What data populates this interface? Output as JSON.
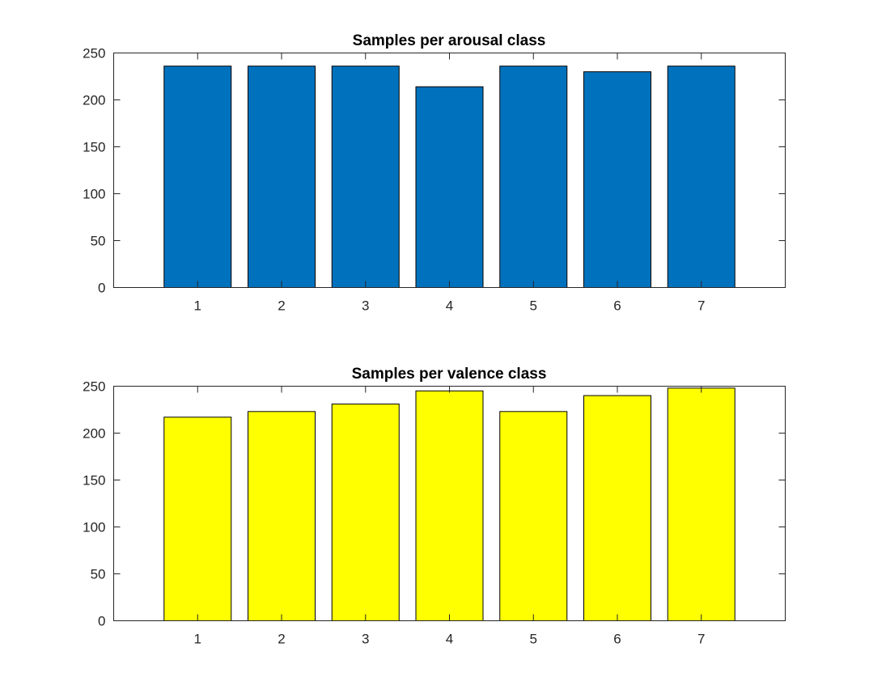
{
  "chart_data": [
    {
      "type": "bar",
      "title": "Samples per arousal class",
      "xlabel": "",
      "ylabel": "",
      "categories": [
        "1",
        "2",
        "3",
        "4",
        "5",
        "6",
        "7"
      ],
      "values": [
        236,
        236,
        236,
        214,
        236,
        230,
        236
      ],
      "xlim": [
        0,
        8
      ],
      "ylim": [
        0,
        250
      ],
      "yticks": [
        0,
        50,
        100,
        150,
        200,
        250
      ],
      "bar_color": "#0072BD",
      "grid": false,
      "legend": "none"
    },
    {
      "type": "bar",
      "title": "Samples per valence class",
      "xlabel": "",
      "ylabel": "",
      "categories": [
        "1",
        "2",
        "3",
        "4",
        "5",
        "6",
        "7"
      ],
      "values": [
        217,
        223,
        231,
        245,
        223,
        240,
        248
      ],
      "xlim": [
        0,
        8
      ],
      "ylim": [
        0,
        250
      ],
      "yticks": [
        0,
        50,
        100,
        150,
        200,
        250
      ],
      "bar_color": "#FFFF00",
      "grid": false,
      "legend": "none"
    }
  ]
}
